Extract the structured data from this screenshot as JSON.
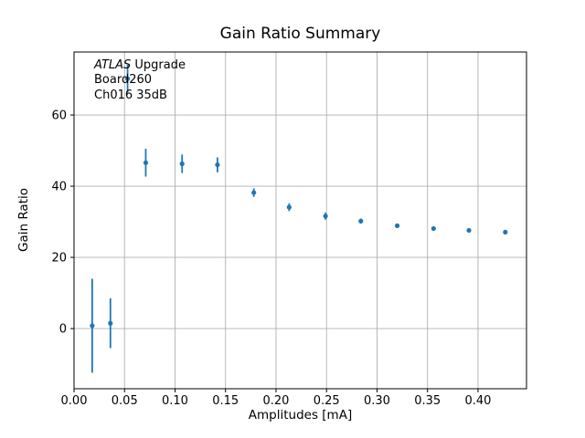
{
  "figure": {
    "background": "#ffffff"
  },
  "colors": {
    "series_blue": "#1f77b4",
    "grid": "#b0b0b0",
    "spine": "#000000",
    "text": "#000000"
  },
  "annotation": {
    "line1_italic": "ATLAS",
    "line1_rest": " Upgrade",
    "line2": "Board260",
    "line3": "Ch016 35dB"
  },
  "chart_data": {
    "type": "scatter",
    "title": "Gain Ratio Summary",
    "xlabel": "Amplitudes [mA]",
    "ylabel": "Gain Ratio",
    "xlim": [
      0,
      0.448
    ],
    "ylim": [
      -16.9,
      77.7
    ],
    "grid": true,
    "legend_position": "none",
    "xticks": {
      "values": [
        0.0,
        0.05,
        0.1,
        0.15,
        0.2,
        0.25,
        0.3,
        0.35,
        0.4
      ],
      "labels": [
        "0.00",
        "0.05",
        "0.10",
        "0.15",
        "0.20",
        "0.25",
        "0.30",
        "0.35",
        "0.40"
      ]
    },
    "yticks": {
      "values": [
        0,
        20,
        40,
        60
      ],
      "labels": [
        "0",
        "20",
        "40",
        "60"
      ]
    },
    "series": [
      {
        "name": "gain-ratio-points",
        "color": "#1f77b4",
        "marker": "dot",
        "marker_radius": 2.6,
        "errorbar_linewidth": 1.8,
        "x": [
          0.018,
          0.036,
          0.053,
          0.071,
          0.107,
          0.142,
          0.178,
          0.213,
          0.249,
          0.284,
          0.32,
          0.356,
          0.391,
          0.427
        ],
        "y": [
          0.8,
          1.5,
          70.2,
          46.6,
          46.3,
          46.0,
          38.2,
          34.1,
          31.6,
          30.2,
          28.9,
          28.1,
          27.6,
          27.1
        ],
        "yerr": [
          13.2,
          7.0,
          3.9,
          3.9,
          2.6,
          2.1,
          1.2,
          1.1,
          1.0,
          0.7,
          0.6,
          0.5,
          0.5,
          0.5
        ]
      }
    ],
    "annotation_lines": [
      "ATLAS Upgrade",
      "Board260",
      "Ch016 35dB"
    ]
  }
}
